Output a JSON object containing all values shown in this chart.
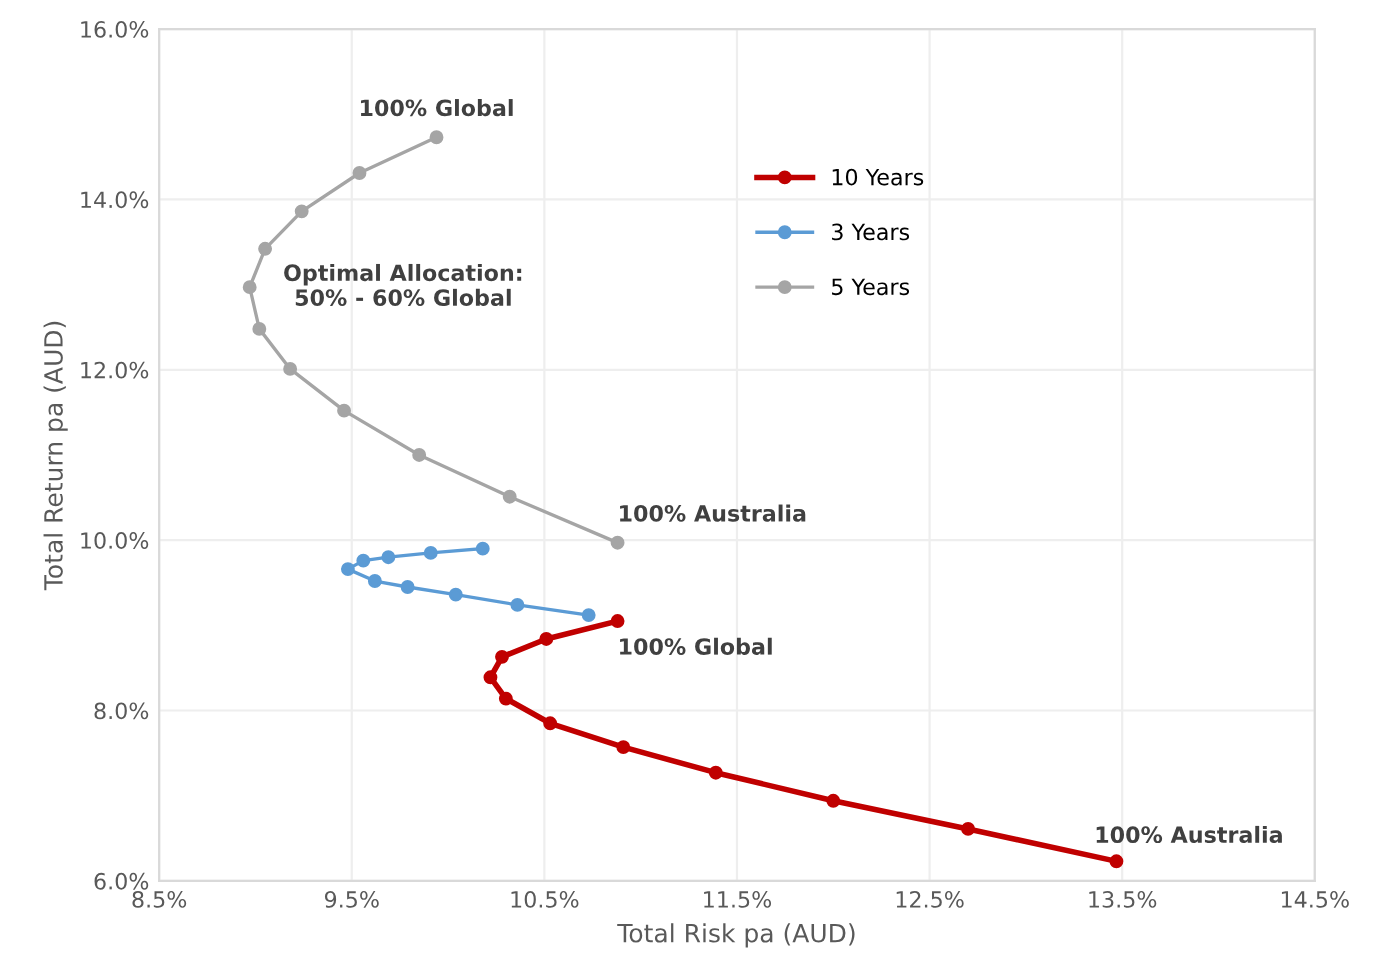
{
  "chart_data": {
    "type": "line",
    "xlabel": "Total Risk pa (AUD)",
    "ylabel": "Total Return pa (AUD)",
    "xlim": [
      8.5,
      14.5
    ],
    "ylim": [
      6.0,
      16.0
    ],
    "xticks": [
      {
        "value": 8.5,
        "label": "8.5%"
      },
      {
        "value": 9.5,
        "label": "9.5%"
      },
      {
        "value": 10.5,
        "label": "10.5%"
      },
      {
        "value": 11.5,
        "label": "11.5%"
      },
      {
        "value": 12.5,
        "label": "12.5%"
      },
      {
        "value": 13.5,
        "label": "13.5%"
      },
      {
        "value": 14.5,
        "label": "14.5%"
      }
    ],
    "yticks": [
      {
        "value": 6.0,
        "label": "6.0%"
      },
      {
        "value": 8.0,
        "label": "8.0%"
      },
      {
        "value": 10.0,
        "label": "10.0%"
      },
      {
        "value": 12.0,
        "label": "12.0%"
      },
      {
        "value": 14.0,
        "label": "14.0%"
      },
      {
        "value": 16.0,
        "label": "16.0%"
      }
    ],
    "grid": true,
    "legend": "top center",
    "marker": "circle",
    "line_style": "solid",
    "series": [
      {
        "name": "10 Years",
        "color": "#c00000",
        "x": [
          10.88,
          10.51,
          10.28,
          10.22,
          10.3,
          10.53,
          10.91,
          11.39,
          12.0,
          12.7,
          13.47
        ],
        "values": [
          9.05,
          8.84,
          8.63,
          8.39,
          8.14,
          7.85,
          7.57,
          7.27,
          6.94,
          6.61,
          6.23
        ]
      },
      {
        "name": "3 Years",
        "color": "#5b9bd5",
        "x": [
          10.18,
          9.91,
          9.69,
          9.56,
          9.48,
          9.62,
          9.79,
          10.04,
          10.36,
          10.73
        ],
        "values": [
          9.9,
          9.85,
          9.8,
          9.76,
          9.66,
          9.52,
          9.45,
          9.36,
          9.24,
          9.12
        ]
      },
      {
        "name": "5 Years",
        "color": "#a5a5a5",
        "x": [
          9.94,
          9.54,
          9.24,
          9.05,
          8.97,
          9.02,
          9.18,
          9.46,
          9.85,
          10.32,
          10.88
        ],
        "values": [
          14.73,
          14.31,
          13.86,
          13.42,
          12.97,
          12.48,
          12.01,
          11.52,
          11.0,
          10.51,
          9.97
        ]
      }
    ],
    "annotations": [
      {
        "text": "100% Global",
        "x": 9.94,
        "y": 14.73
      },
      {
        "text": "Optimal Allocation:\n50% - 60% Global",
        "x": 8.97,
        "y": 12.97
      },
      {
        "text": "100% Australia",
        "x": 10.88,
        "y": 9.97
      },
      {
        "text": "100% Global",
        "x": 10.88,
        "y": 9.05
      },
      {
        "text": "100% Australia",
        "x": 13.47,
        "y": 6.23
      }
    ]
  }
}
